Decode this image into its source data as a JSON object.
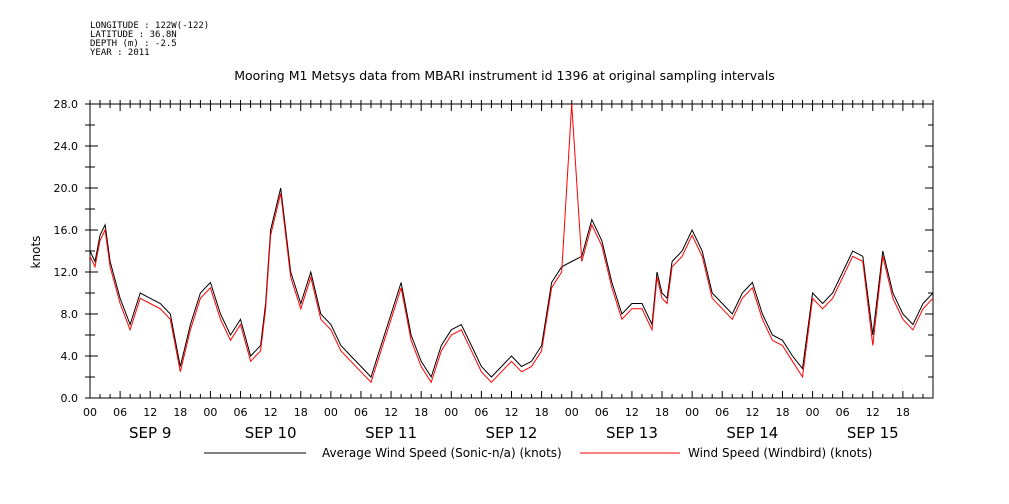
{
  "meta": {
    "longitude": "LONGITUDE : 122W(-122)",
    "latitude": "LATITUDE : 36.8N",
    "depth": "DEPTH (m) : -2.5",
    "year": "YEAR : 2011"
  },
  "chart_data": {
    "type": "line",
    "title": "Mooring M1 Metsys data from MBARI instrument id 1396 at original sampling intervals",
    "ylabel": "knots",
    "xlabel": "",
    "ylim": [
      0,
      28
    ],
    "yticks": [
      "0.0",
      "4.0",
      "8.0",
      "12.0",
      "16.0",
      "20.0",
      "24.0",
      "28.0"
    ],
    "xlim_hours": [
      0,
      168
    ],
    "hour_ticks": [
      "00",
      "06",
      "12",
      "18"
    ],
    "day_labels": [
      "SEP  9",
      "SEP 10",
      "SEP 11",
      "SEP 12",
      "SEP 13",
      "SEP 14",
      "SEP 15"
    ],
    "grid": false,
    "legend_position": "bottom",
    "series": [
      {
        "name": "Average Wind Speed (Sonic-n/a) (knots)",
        "color": "#000000",
        "x_hours": [
          0,
          1,
          2,
          3,
          4,
          6,
          8,
          10,
          12,
          14,
          16,
          18,
          20,
          22,
          24,
          26,
          28,
          30,
          32,
          34,
          35,
          36,
          38,
          40,
          42,
          44,
          46,
          48,
          50,
          52,
          54,
          56,
          58,
          60,
          62,
          64,
          66,
          68,
          70,
          72,
          74,
          76,
          78,
          80,
          82,
          84,
          86,
          88,
          90,
          92,
          94,
          96,
          98,
          100,
          102,
          104,
          106,
          108,
          110,
          112,
          113,
          114,
          115,
          116,
          118,
          120,
          122,
          124,
          126,
          128,
          130,
          132,
          134,
          136,
          138,
          140,
          142,
          144,
          146,
          148,
          150,
          152,
          154,
          156,
          158,
          160,
          162,
          164,
          166,
          168
        ],
        "values": [
          14,
          13,
          15.5,
          16.5,
          13,
          9.5,
          7,
          10,
          9.5,
          9,
          8,
          3,
          7,
          10,
          11,
          8,
          6,
          7.5,
          4,
          5,
          9,
          16,
          20,
          12,
          9,
          12,
          8,
          7,
          5,
          4,
          3,
          2,
          5,
          8,
          11,
          6,
          3.5,
          2,
          5,
          6.5,
          7,
          5,
          3,
          2,
          3,
          4,
          3,
          3.5,
          5,
          11,
          12.5,
          13,
          13.5,
          17,
          15,
          11,
          8,
          9,
          9,
          7,
          12,
          10,
          9.5,
          13,
          14,
          16,
          14,
          10,
          9,
          8,
          10,
          11,
          8,
          6,
          5.5,
          4,
          2.8,
          10,
          9,
          10,
          12,
          14,
          13.5,
          6,
          14,
          10,
          8,
          7,
          9,
          10
        ]
      },
      {
        "name": "Wind Speed (Windbird) (knots)",
        "color": "#ff0000",
        "x_hours": [
          0,
          1,
          2,
          3,
          4,
          6,
          8,
          10,
          12,
          14,
          16,
          18,
          20,
          22,
          24,
          26,
          28,
          30,
          32,
          34,
          35,
          36,
          38,
          40,
          42,
          44,
          46,
          48,
          50,
          52,
          54,
          56,
          58,
          60,
          62,
          64,
          66,
          68,
          70,
          72,
          74,
          76,
          78,
          80,
          82,
          84,
          86,
          88,
          90,
          92,
          94,
          96,
          98,
          100,
          102,
          104,
          106,
          108,
          110,
          112,
          113,
          114,
          115,
          116,
          118,
          120,
          122,
          124,
          126,
          128,
          130,
          132,
          134,
          136,
          138,
          140,
          142,
          144,
          146,
          148,
          150,
          152,
          154,
          156,
          158,
          160,
          162,
          164,
          166,
          168
        ],
        "values": [
          13.5,
          12.5,
          15,
          16,
          12.5,
          9,
          6.5,
          9.5,
          9,
          8.5,
          7.5,
          2.5,
          6.5,
          9.5,
          10.5,
          7.5,
          5.5,
          7,
          3.5,
          4.5,
          8.5,
          15.5,
          19.5,
          11.5,
          8.5,
          11.5,
          7.5,
          6.5,
          4.5,
          3.5,
          2.5,
          1.5,
          4.5,
          7.5,
          10.5,
          5.5,
          3,
          1.5,
          4.5,
          6,
          6.5,
          4.5,
          2.5,
          1.5,
          2.5,
          3.5,
          2.5,
          3,
          4.5,
          10.5,
          12,
          28,
          13,
          16.5,
          14.5,
          10.5,
          7.5,
          8.5,
          8.5,
          6.5,
          11.5,
          9.5,
          9,
          12.5,
          13.5,
          15.5,
          13.5,
          9.5,
          8.5,
          7.5,
          9.5,
          10.5,
          7.5,
          5.5,
          5,
          3.5,
          2,
          9.5,
          8.5,
          9.5,
          11.5,
          13.5,
          13,
          5,
          13.5,
          9.5,
          7.5,
          6.5,
          8.5,
          9.5
        ]
      }
    ]
  }
}
